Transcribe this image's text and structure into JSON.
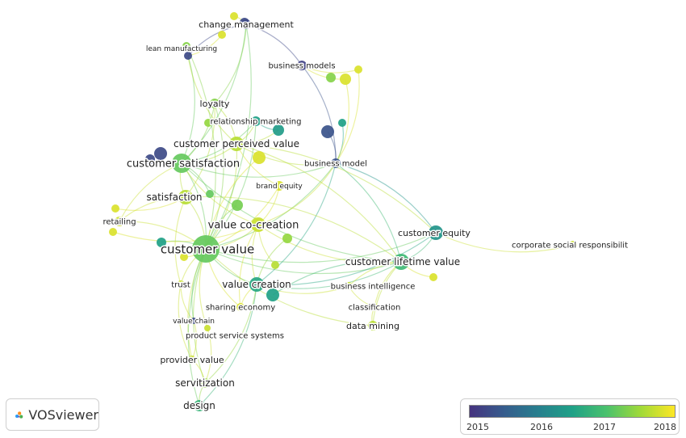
{
  "nodes": [
    {
      "id": "change-management",
      "label": "change management",
      "year": 2015.3,
      "show_label": true
    },
    {
      "id": "lean-manufacturing",
      "label": "lean manufacturing",
      "year": 2015.3,
      "show_label": true
    },
    {
      "id": "business-models",
      "label": "business models",
      "year": 2015.2,
      "show_label": true
    },
    {
      "id": "loyalty",
      "label": "loyalty",
      "year": 2017.5,
      "show_label": true
    },
    {
      "id": "relationship-marketing",
      "label": "relationship marketing",
      "year": 2016.6,
      "show_label": true
    },
    {
      "id": "customer-perceived-value",
      "label": "customer perceived value",
      "year": 2017.8,
      "show_label": true
    },
    {
      "id": "customer-satisfaction",
      "label": "customer satisfaction",
      "year": 2017.3,
      "show_label": true
    },
    {
      "id": "business-model",
      "label": "business model",
      "year": 2015.4,
      "show_label": true
    },
    {
      "id": "brand-equity",
      "label": "brand equity",
      "year": 2018.0,
      "show_label": true
    },
    {
      "id": "satisfaction",
      "label": "satisfaction",
      "year": 2017.8,
      "show_label": true
    },
    {
      "id": "retailing",
      "label": "retailing",
      "year": 2017.9,
      "show_label": true
    },
    {
      "id": "value-co-creation",
      "label": "value co-creation",
      "year": 2017.9,
      "show_label": true
    },
    {
      "id": "customer-equity",
      "label": "customer equity",
      "year": 2016.4,
      "show_label": true
    },
    {
      "id": "corporate-social-responsibility",
      "label": "corporate social responsibilit",
      "year": 2017.9,
      "show_label": true
    },
    {
      "id": "customer-value",
      "label": "customer value",
      "year": 2017.3,
      "show_label": true
    },
    {
      "id": "customer-lifetime-value",
      "label": "customer lifetime value",
      "year": 2017.0,
      "show_label": true
    },
    {
      "id": "trust",
      "label": "trust",
      "year": 2017.9,
      "show_label": true
    },
    {
      "id": "value-creation",
      "label": "value creation",
      "year": 2016.7,
      "show_label": true
    },
    {
      "id": "business-intelligence",
      "label": "business intelligence",
      "year": 2017.9,
      "show_label": true
    },
    {
      "id": "sharing-economy",
      "label": "sharing economy",
      "year": 2018.0,
      "show_label": true
    },
    {
      "id": "classification",
      "label": "classification",
      "year": 2017.9,
      "show_label": true
    },
    {
      "id": "value-chain",
      "label": "value chain",
      "year": 2015.3,
      "show_label": true
    },
    {
      "id": "data-mining",
      "label": "data mining",
      "year": 2017.8,
      "show_label": true
    },
    {
      "id": "product-service-systems",
      "label": "product service systems",
      "year": 2017.9,
      "show_label": true
    },
    {
      "id": "provider-value",
      "label": "provider value",
      "year": 2017.9,
      "show_label": true
    },
    {
      "id": "servitization",
      "label": "servitization",
      "year": 2017.6,
      "show_label": true
    },
    {
      "id": "design",
      "label": "design",
      "year": 2016.9,
      "show_label": true
    },
    {
      "id": "u1",
      "label": "",
      "year": 2018.0,
      "show_label": false
    },
    {
      "id": "u2",
      "label": "",
      "year": 2015.3,
      "show_label": false
    },
    {
      "id": "u3",
      "label": "",
      "year": 2018.0,
      "show_label": false
    },
    {
      "id": "u4",
      "label": "",
      "year": 2017.5,
      "show_label": false
    },
    {
      "id": "u5",
      "label": "",
      "year": 2016.5,
      "show_label": false
    },
    {
      "id": "u6",
      "label": "",
      "year": 2017.6,
      "show_label": false
    },
    {
      "id": "u7",
      "label": "",
      "year": 2015.3,
      "show_label": false
    },
    {
      "id": "u8",
      "label": "",
      "year": 2015.3,
      "show_label": false
    },
    {
      "id": "u9",
      "label": "",
      "year": 2015.4,
      "show_label": false
    },
    {
      "id": "u10",
      "label": "",
      "year": 2016.6,
      "show_label": false
    },
    {
      "id": "u11",
      "label": "",
      "year": 2018.0,
      "show_label": false
    },
    {
      "id": "u12",
      "label": "",
      "year": 2018.0,
      "show_label": false
    },
    {
      "id": "u13",
      "label": "",
      "year": 2017.5,
      "show_label": false
    },
    {
      "id": "u14",
      "label": "",
      "year": 2018.0,
      "show_label": false
    },
    {
      "id": "u15",
      "label": "",
      "year": 2018.0,
      "show_label": false
    },
    {
      "id": "u16",
      "label": "",
      "year": 2018.0,
      "show_label": false
    },
    {
      "id": "u17",
      "label": "",
      "year": 2017.4,
      "show_label": false
    },
    {
      "id": "u18",
      "label": "",
      "year": 2017.3,
      "show_label": false
    },
    {
      "id": "u19",
      "label": "",
      "year": 2016.6,
      "show_label": false
    },
    {
      "id": "u20",
      "label": "",
      "year": 2017.6,
      "show_label": false
    },
    {
      "id": "u21",
      "label": "",
      "year": 2018.0,
      "show_label": false
    },
    {
      "id": "u22",
      "label": "",
      "year": 2016.6,
      "show_label": false
    },
    {
      "id": "u23",
      "label": "",
      "year": 2018.0,
      "show_label": false
    },
    {
      "id": "u24",
      "label": "",
      "year": 2017.8,
      "show_label": false
    }
  ],
  "edges": [
    [
      "customer-value",
      "customer-satisfaction"
    ],
    [
      "customer-value",
      "value-co-creation"
    ],
    [
      "customer-value",
      "customer-perceived-value"
    ],
    [
      "customer-value",
      "value-creation"
    ],
    [
      "customer-value",
      "customer-lifetime-value"
    ],
    [
      "customer-value",
      "satisfaction"
    ],
    [
      "customer-value",
      "loyalty"
    ],
    [
      "customer-value",
      "trust"
    ],
    [
      "customer-value",
      "retailing"
    ],
    [
      "customer-value",
      "business-model"
    ],
    [
      "customer-value",
      "customer-equity"
    ],
    [
      "customer-value",
      "brand-equity"
    ],
    [
      "customer-value",
      "provider-value"
    ],
    [
      "customer-value",
      "servitization"
    ],
    [
      "customer-value",
      "design"
    ],
    [
      "customer-value",
      "value-chain"
    ],
    [
      "customer-value",
      "product-service-systems"
    ],
    [
      "customer-value",
      "sharing-economy"
    ],
    [
      "customer-value",
      "relationship-marketing"
    ],
    [
      "customer-value",
      "data-mining"
    ],
    [
      "customer-value",
      "change-management"
    ],
    [
      "customer-value",
      "u19"
    ],
    [
      "customer-value",
      "u4"
    ],
    [
      "customer-satisfaction",
      "loyalty"
    ],
    [
      "customer-satisfaction",
      "relationship-marketing"
    ],
    [
      "customer-satisfaction",
      "customer-perceived-value"
    ],
    [
      "customer-satisfaction",
      "satisfaction"
    ],
    [
      "customer-satisfaction",
      "retailing"
    ],
    [
      "customer-satisfaction",
      "value-co-creation"
    ],
    [
      "customer-satisfaction",
      "lean-manufacturing"
    ],
    [
      "customer-satisfaction",
      "change-management"
    ],
    [
      "customer-satisfaction",
      "customer-lifetime-value"
    ],
    [
      "customer-satisfaction",
      "business-model"
    ],
    [
      "customer-perceived-value",
      "loyalty"
    ],
    [
      "customer-perceived-value",
      "brand-equity"
    ],
    [
      "customer-perceived-value",
      "relationship-marketing"
    ],
    [
      "customer-perceived-value",
      "u5"
    ],
    [
      "customer-perceived-value",
      "business-model"
    ],
    [
      "value-co-creation",
      "value-creation"
    ],
    [
      "value-co-creation",
      "customer-lifetime-value"
    ],
    [
      "value-co-creation",
      "business-model"
    ],
    [
      "value-co-creation",
      "brand-equity"
    ],
    [
      "value-co-creation",
      "u24"
    ],
    [
      "value-co-creation",
      "sharing-economy"
    ],
    [
      "value-creation",
      "business-model"
    ],
    [
      "value-creation",
      "customer-lifetime-value"
    ],
    [
      "value-creation",
      "sharing-economy"
    ],
    [
      "value-creation",
      "customer-equity"
    ],
    [
      "value-creation",
      "business-intelligence"
    ],
    [
      "customer-lifetime-value",
      "customer-equity"
    ],
    [
      "customer-lifetime-value",
      "business-intelligence"
    ],
    [
      "customer-lifetime-value",
      "classification"
    ],
    [
      "customer-lifetime-value",
      "data-mining"
    ],
    [
      "customer-lifetime-value",
      "u23"
    ],
    [
      "customer-lifetime-value",
      "u22"
    ],
    [
      "customer-lifetime-value",
      "business-model"
    ],
    [
      "customer-lifetime-value",
      "satisfaction"
    ],
    [
      "customer-lifetime-value",
      "customer-perceived-value"
    ],
    [
      "customer-equity",
      "corporate-social-responsibility"
    ],
    [
      "customer-equity",
      "business-model"
    ],
    [
      "customer-equity",
      "customer-perceived-value"
    ],
    [
      "business-model",
      "business-models"
    ],
    [
      "business-model",
      "u10"
    ],
    [
      "business-model",
      "u12"
    ],
    [
      "business-model",
      "u11"
    ],
    [
      "business-model",
      "u9"
    ],
    [
      "business-models",
      "change-management"
    ],
    [
      "business-models",
      "u12"
    ],
    [
      "business-models",
      "u11"
    ],
    [
      "change-management",
      "lean-manufacturing"
    ],
    [
      "change-management",
      "u1"
    ],
    [
      "change-management",
      "u2"
    ],
    [
      "lean-manufacturing",
      "customer-perceived-value"
    ],
    [
      "lean-manufacturing",
      "u3"
    ],
    [
      "classification",
      "data-mining"
    ],
    [
      "business-intelligence",
      "classification"
    ],
    [
      "trust",
      "provider-value"
    ],
    [
      "trust",
      "value-chain"
    ],
    [
      "servitization",
      "design"
    ],
    [
      "servitization",
      "provider-value"
    ],
    [
      "servitization",
      "product-service-systems"
    ],
    [
      "provider-value",
      "value-chain"
    ],
    [
      "satisfaction",
      "retailing"
    ],
    [
      "satisfaction",
      "loyalty"
    ],
    [
      "satisfaction",
      "trust"
    ],
    [
      "relationship-marketing",
      "u5"
    ],
    [
      "loyalty",
      "change-management"
    ],
    [
      "u16",
      "customer-value"
    ],
    [
      "u17",
      "customer-value"
    ],
    [
      "u18",
      "customer-satisfaction"
    ],
    [
      "u14",
      "satisfaction"
    ],
    [
      "u15",
      "value-co-creation"
    ],
    [
      "u20",
      "value-creation"
    ],
    [
      "u21",
      "customer-value"
    ],
    [
      "design",
      "value-creation"
    ],
    [
      "servitization",
      "value-creation"
    ]
  ],
  "legend": {
    "ticks": [
      "2015",
      "2016",
      "2017",
      "2018"
    ],
    "min": 2015,
    "max": 2018.2
  },
  "logo": {
    "text": "VOSviewer"
  },
  "colors": {
    "stops": [
      "#46337f",
      "#365c8d",
      "#277f8e",
      "#1fa187",
      "#4ac16d",
      "#a0da39",
      "#fde725"
    ]
  }
}
